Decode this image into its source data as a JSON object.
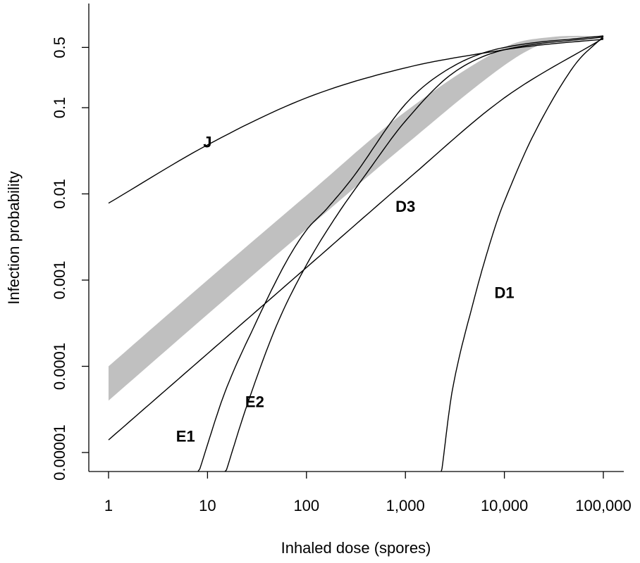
{
  "chart_data": {
    "type": "line",
    "title": "",
    "xlabel": "Inhaled dose (spores)",
    "ylabel": "Infection probability",
    "x_scale": "log",
    "y_scale": "log",
    "xlim": [
      1,
      100000
    ],
    "ylim": [
      1e-05,
      0.7
    ],
    "x_ticks": [
      1,
      10,
      100,
      1000,
      10000,
      100000
    ],
    "x_tick_labels": [
      "1",
      "10",
      "100",
      "1,000",
      "10,000",
      "100,000"
    ],
    "y_ticks": [
      1e-05,
      0.0001,
      0.001,
      0.01,
      0.1,
      0.5
    ],
    "y_tick_labels": [
      "0.00001",
      "0.0001",
      "0.001",
      "0.01",
      "0.1",
      "0.5"
    ],
    "grid": false,
    "band": {
      "color": "#c0c0c0",
      "x": [
        1,
        10,
        100,
        1000,
        10000,
        30000,
        100000
      ],
      "upper": [
        0.0001,
        0.001,
        0.0096,
        0.09,
        0.5,
        0.66,
        0.68
      ],
      "lower": [
        4e-05,
        0.0004,
        0.0039,
        0.037,
        0.31,
        0.6,
        0.66
      ]
    },
    "series": [
      {
        "name": "J",
        "x": [
          1,
          10,
          100,
          1000,
          10000,
          30000,
          100000
        ],
        "y": [
          0.0078,
          0.037,
          0.13,
          0.29,
          0.47,
          0.55,
          0.62
        ]
      },
      {
        "name": "D3",
        "x": [
          1,
          10,
          100,
          1000,
          10000,
          100000
        ],
        "y": [
          1.4e-05,
          0.00014,
          0.0014,
          0.014,
          0.13,
          0.64
        ]
      },
      {
        "name": "E1",
        "x": [
          8,
          15,
          30,
          60,
          100,
          160,
          300,
          1000,
          3000,
          10000,
          100000
        ],
        "y": [
          5.5e-06,
          5e-05,
          0.0003,
          0.0015,
          0.0038,
          0.0067,
          0.016,
          0.11,
          0.3,
          0.5,
          0.68
        ]
      },
      {
        "name": "E2",
        "x": [
          15,
          25,
          50,
          100,
          200,
          400,
          1000,
          3000,
          10000,
          100000
        ],
        "y": [
          5.5e-06,
          3.5e-05,
          0.0003,
          0.0015,
          0.0055,
          0.017,
          0.07,
          0.25,
          0.47,
          0.66
        ]
      },
      {
        "name": "D1",
        "x": [
          2300,
          3000,
          5000,
          7500,
          10000,
          20000,
          50000,
          100000
        ],
        "y": [
          5.5e-06,
          5.5e-05,
          0.00063,
          0.0032,
          0.0082,
          0.05,
          0.3,
          0.67
        ]
      }
    ],
    "curve_labels": [
      {
        "text": "J",
        "x": 10,
        "y": 0.04
      },
      {
        "text": "D3",
        "x": 1000,
        "y": 0.0072
      },
      {
        "text": "E1",
        "x": 6,
        "y": 1.55e-05
      },
      {
        "text": "E2",
        "x": 30,
        "y": 3.9e-05
      },
      {
        "text": "D1",
        "x": 10000,
        "y": 0.00072
      }
    ]
  }
}
